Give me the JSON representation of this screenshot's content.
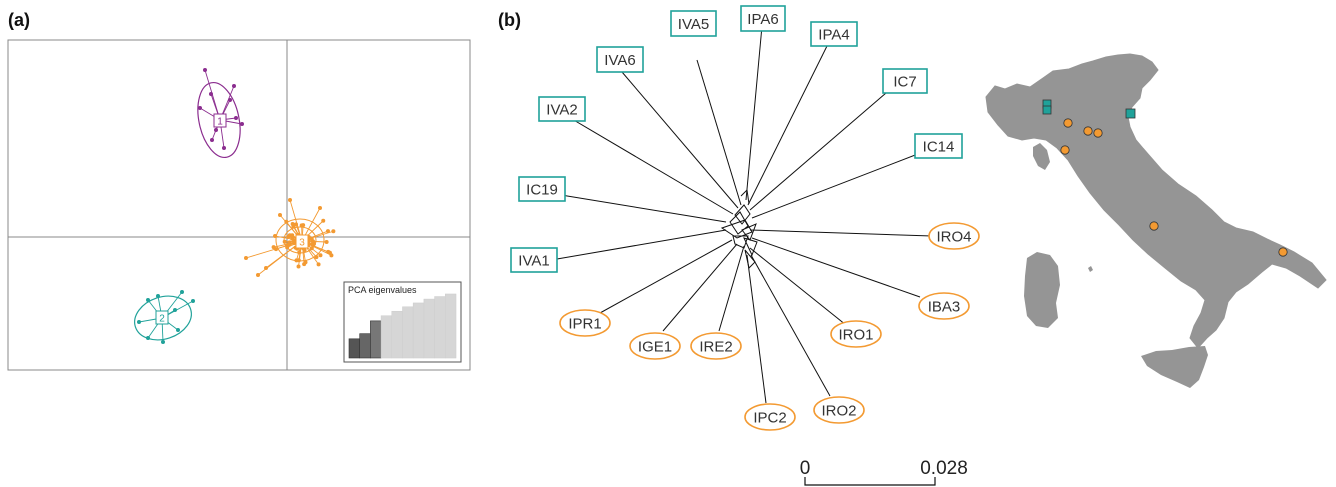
{
  "panels": {
    "a": "(a)",
    "b": "(b)"
  },
  "colors": {
    "group1": "#8b2d8f",
    "group2": "#20a29a",
    "group3": "#f39a32",
    "map_land": "#959595",
    "tree": "#111111"
  },
  "pca": {
    "eigen_title": "PCA eigenvalues",
    "eigenvalues": [
      0.3,
      0.38,
      0.58,
      0.66,
      0.73,
      0.8,
      0.86,
      0.92,
      0.96,
      1.0
    ],
    "retained": 3,
    "groups": [
      {
        "label": "1",
        "color_key": "group1"
      },
      {
        "label": "2",
        "color_key": "group2"
      },
      {
        "label": "3",
        "color_key": "group3"
      }
    ]
  },
  "tree": {
    "tips": [
      {
        "label": "IVA5",
        "shape": "rect"
      },
      {
        "label": "IPA6",
        "shape": "rect"
      },
      {
        "label": "IPA4",
        "shape": "rect"
      },
      {
        "label": "IVA6",
        "shape": "rect"
      },
      {
        "label": "IC7",
        "shape": "rect"
      },
      {
        "label": "IVA2",
        "shape": "rect"
      },
      {
        "label": "IC14",
        "shape": "rect"
      },
      {
        "label": "IC19",
        "shape": "rect"
      },
      {
        "label": "IRO4",
        "shape": "ellipse"
      },
      {
        "label": "IVA1",
        "shape": "rect"
      },
      {
        "label": "IBA3",
        "shape": "ellipse"
      },
      {
        "label": "IPR1",
        "shape": "ellipse"
      },
      {
        "label": "IRO1",
        "shape": "ellipse"
      },
      {
        "label": "IGE1",
        "shape": "ellipse"
      },
      {
        "label": "IRE2",
        "shape": "ellipse"
      },
      {
        "label": "IPC2",
        "shape": "ellipse"
      },
      {
        "label": "IRO2",
        "shape": "ellipse"
      }
    ],
    "scale_bar": {
      "left": "0",
      "right": "0.028"
    }
  },
  "map": {
    "region": "italy-map"
  }
}
